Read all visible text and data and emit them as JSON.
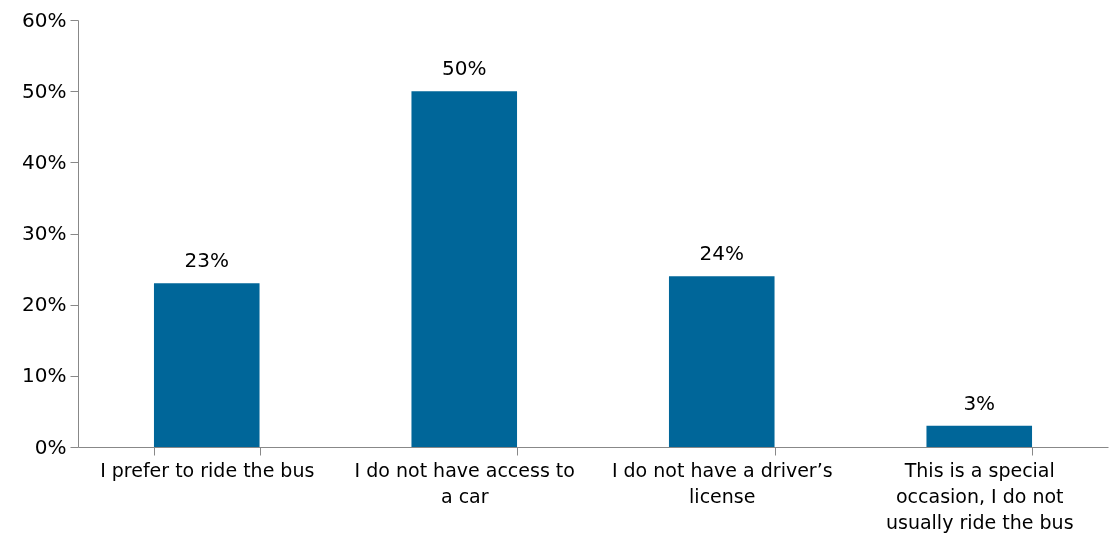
{
  "chart_data": {
    "type": "bar",
    "categories": [
      "I prefer to ride the bus",
      "I do not have access to a car",
      "I do not have a driver’s license",
      "This is a special occasion, I do not usually ride the bus"
    ],
    "values": [
      23,
      50,
      24,
      3
    ],
    "color": "#006699",
    "value_labels": [
      "23%",
      "50%",
      "24%",
      "3%"
    ],
    "ylim": [
      0,
      60
    ],
    "yticks": [
      {
        "value": 0,
        "label": "0%"
      },
      {
        "value": 10,
        "label": "10%"
      },
      {
        "value": 20,
        "label": "20%"
      },
      {
        "value": 30,
        "label": "30%"
      },
      {
        "value": 40,
        "label": "40%"
      },
      {
        "value": 50,
        "label": "50%"
      },
      {
        "value": 60,
        "label": "60%"
      }
    ],
    "grid": false
  }
}
